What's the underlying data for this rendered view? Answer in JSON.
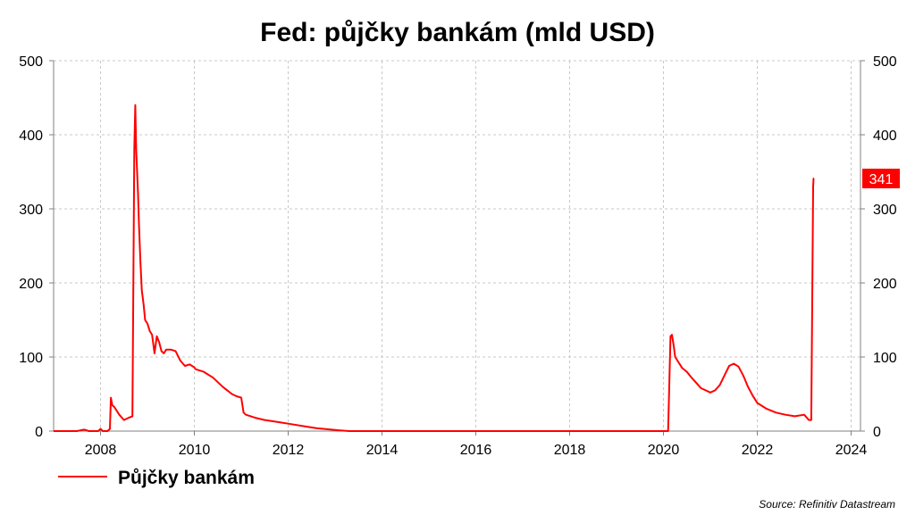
{
  "chart_data": {
    "type": "line",
    "title": "Fed: půjčky bankám (mld USD)",
    "xlabel": "",
    "ylabel": "",
    "source": "Source: Refinitiv Datastream",
    "xlim": [
      2007.0,
      2024.2
    ],
    "ylim": [
      0,
      500
    ],
    "x_ticks": [
      2008,
      2010,
      2012,
      2014,
      2016,
      2018,
      2020,
      2022,
      2024
    ],
    "y_ticks": [
      0,
      100,
      200,
      300,
      400,
      500
    ],
    "grid": true,
    "legend_position": "bottom-left",
    "last_value_label": "341",
    "colors": {
      "series": "#ff0000",
      "last_value_badge": "#ff0000",
      "grid": "#c8c8c8",
      "axis": "#808080"
    },
    "series": [
      {
        "name": "Půjčky bankám",
        "x": [
          2007.0,
          2007.5,
          2007.65,
          2007.75,
          2007.95,
          2008.0,
          2008.05,
          2008.15,
          2008.2,
          2008.22,
          2008.25,
          2008.3,
          2008.4,
          2008.5,
          2008.6,
          2008.68,
          2008.72,
          2008.74,
          2008.76,
          2008.8,
          2008.82,
          2008.85,
          2008.88,
          2008.92,
          2008.95,
          2009.0,
          2009.05,
          2009.1,
          2009.15,
          2009.2,
          2009.25,
          2009.3,
          2009.35,
          2009.4,
          2009.5,
          2009.6,
          2009.7,
          2009.8,
          2009.9,
          2009.95,
          2010.0,
          2010.02,
          2010.05,
          2010.2,
          2010.4,
          2010.6,
          2010.8,
          2010.9,
          2011.0,
          2011.05,
          2011.1,
          2011.3,
          2011.5,
          2011.8,
          2012.0,
          2012.3,
          2012.6,
          2012.9,
          2013.1,
          2013.3,
          2014.0,
          2016.0,
          2018.0,
          2019.5,
          2020.1,
          2020.15,
          2020.18,
          2020.22,
          2020.25,
          2020.3,
          2020.4,
          2020.5,
          2020.6,
          2020.7,
          2020.8,
          2020.9,
          2021.0,
          2021.1,
          2021.2,
          2021.3,
          2021.4,
          2021.5,
          2021.6,
          2021.7,
          2021.8,
          2021.9,
          2022.0,
          2022.2,
          2022.4,
          2022.6,
          2022.8,
          2023.0,
          2023.1,
          2023.15,
          2023.17,
          2023.19,
          2023.2,
          2023.21
        ],
        "values": [
          0,
          0,
          2,
          0,
          0,
          3,
          0,
          0,
          3,
          45,
          35,
          32,
          22,
          15,
          18,
          20,
          380,
          440,
          380,
          320,
          280,
          230,
          190,
          170,
          150,
          145,
          135,
          130,
          105,
          128,
          120,
          108,
          105,
          110,
          110,
          108,
          95,
          88,
          90,
          88,
          86,
          84,
          83,
          80,
          72,
          60,
          50,
          47,
          45,
          25,
          22,
          18,
          15,
          12,
          10,
          7,
          4,
          2,
          1,
          0,
          0,
          0,
          0,
          0,
          0,
          128,
          130,
          115,
          100,
          95,
          85,
          80,
          72,
          65,
          58,
          55,
          52,
          55,
          62,
          75,
          88,
          91,
          87,
          75,
          60,
          48,
          38,
          30,
          25,
          22,
          20,
          22,
          15,
          15,
          160,
          330,
          341,
          341
        ]
      }
    ]
  }
}
